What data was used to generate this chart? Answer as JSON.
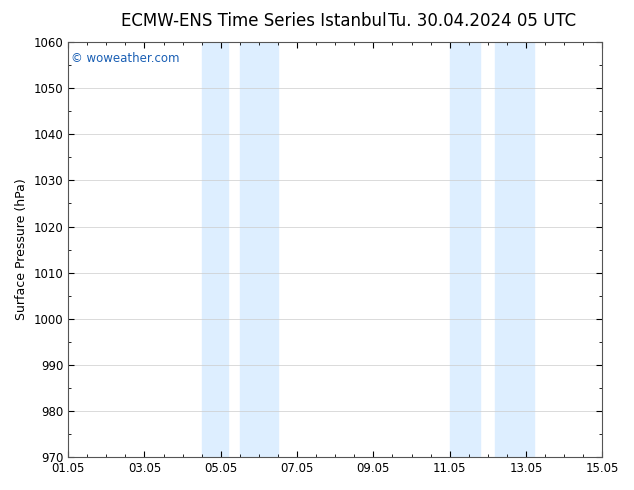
{
  "title": "ECMW-ENS Time Series Istanbul",
  "title2": "Tu. 30.04.2024 05 UTC",
  "ylabel": "Surface Pressure (hPa)",
  "ylim": [
    970,
    1060
  ],
  "yticks": [
    970,
    980,
    990,
    1000,
    1010,
    1020,
    1030,
    1040,
    1050,
    1060
  ],
  "xlim_start": 0,
  "xlim_end": 14,
  "xtick_positions": [
    0,
    2,
    4,
    6,
    8,
    10,
    12,
    14
  ],
  "xtick_labels": [
    "01.05",
    "03.05",
    "05.05",
    "07.05",
    "09.05",
    "11.05",
    "13.05",
    "15.05"
  ],
  "shaded_bands": [
    {
      "x_start": 3.5,
      "x_end": 4.2
    },
    {
      "x_start": 4.5,
      "x_end": 5.5
    },
    {
      "x_start": 10.0,
      "x_end": 10.8
    },
    {
      "x_start": 11.2,
      "x_end": 12.2
    }
  ],
  "band_color": "#ddeeff",
  "band_alpha": 1.0,
  "watermark": "© woweather.com",
  "watermark_color": "#1a5fb4",
  "background_color": "#ffffff",
  "plot_bg_color": "#ffffff",
  "grid_color": "#cccccc",
  "title_fontsize": 12,
  "axis_label_fontsize": 9,
  "tick_fontsize": 8.5
}
